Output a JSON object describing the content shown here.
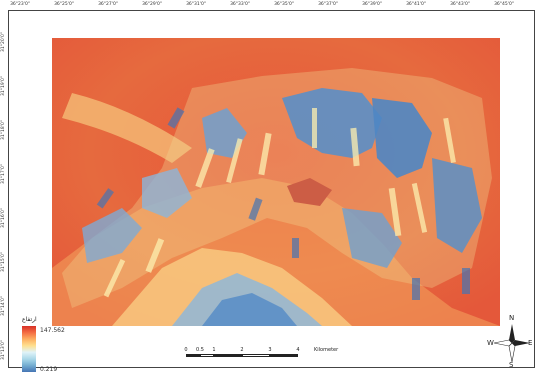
{
  "top_ticks": [
    "36°23'0\"",
    "36°25'0\"",
    "36°27'0\"",
    "36°29'0\"",
    "36°31'0\"",
    "36°33'0\"",
    "36°35'0\"",
    "36°37'0\"",
    "36°39'0\"",
    "36°41'0\"",
    "36°43'0\"",
    "36°45'0\""
  ],
  "left_ticks": [
    "31°20'0\"",
    "31°19'0\"",
    "31°18'0\"",
    "31°17'0\"",
    "31°16'0\"",
    "31°15'0\"",
    "31°14'0\"",
    "31°13'0\""
  ],
  "legend": {
    "title": "ارتفاع",
    "max": "147.562",
    "min": "0.219"
  },
  "scale": {
    "labels": [
      "0",
      "0.5",
      "1",
      "2",
      "3",
      "4"
    ],
    "unit": "Kilometer"
  },
  "compass": {
    "n": "N",
    "s": "S",
    "e": "E",
    "w": "W"
  },
  "colors": {
    "high": "#d73027",
    "mid": "#fee090",
    "low": "#4575b4"
  }
}
